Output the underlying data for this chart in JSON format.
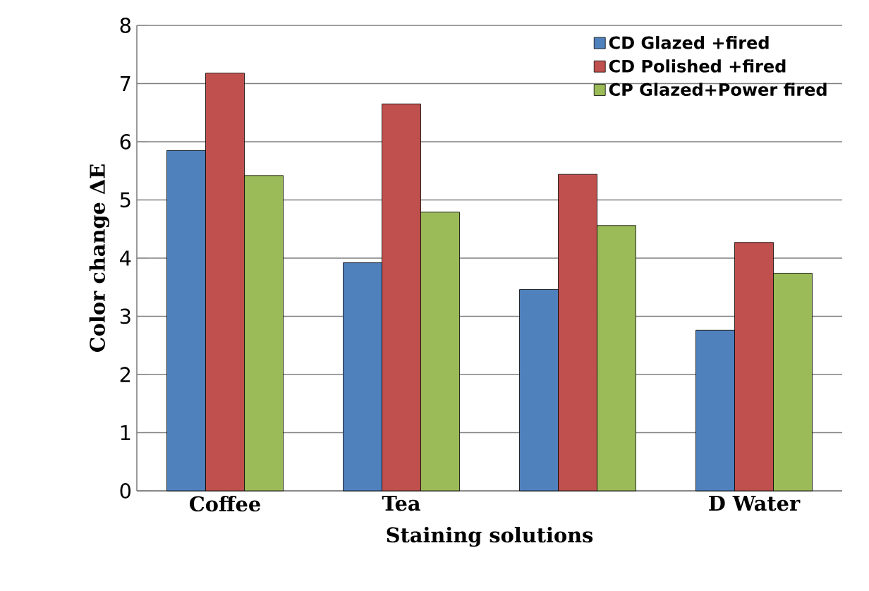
{
  "chart_data": {
    "type": "bar",
    "xlabel": "Staining solutions",
    "ylabel": "Color change ΔE",
    "categories": [
      "Coffee",
      "Tea",
      null,
      "D Water"
    ],
    "series": [
      {
        "name": "CD Glazed +fired",
        "color": "#4f81bd",
        "values": [
          5.85,
          3.92,
          3.46,
          2.76
        ]
      },
      {
        "name": "CD Polished +fired",
        "color": "#c0504d",
        "values": [
          7.18,
          6.65,
          5.44,
          4.27
        ]
      },
      {
        "name": "CP Glazed+Power fired",
        "color": "#9bbb59",
        "values": [
          5.42,
          4.79,
          4.56,
          3.74
        ]
      }
    ],
    "ylim": [
      0,
      8
    ],
    "yticks": [
      0,
      1,
      2,
      3,
      4,
      5,
      6,
      7,
      8
    ],
    "grid": "y",
    "legend": "top right"
  }
}
